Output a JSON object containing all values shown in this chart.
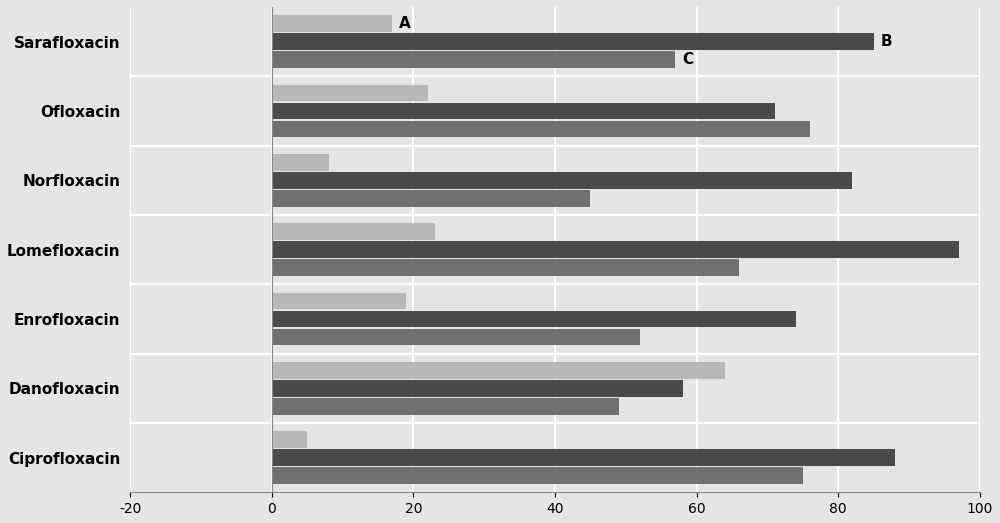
{
  "categories": [
    "Sarafloxacin",
    "Ofloxacin",
    "Norfloxacin",
    "Lomefloxacin",
    "Enrofloxacin",
    "Danofloxacin",
    "Ciprofloxacin"
  ],
  "series_A": [
    17,
    22,
    8,
    23,
    19,
    64,
    5
  ],
  "series_B": [
    85,
    71,
    82,
    97,
    74,
    58,
    88
  ],
  "series_C": [
    57,
    76,
    45,
    66,
    52,
    49,
    75
  ],
  "color_A": "#b8b8b8",
  "color_B": "#4a4a4a",
  "color_C": "#707070",
  "xlim": [
    -20,
    100
  ],
  "xticks": [
    -20,
    0,
    20,
    40,
    60,
    80,
    100
  ],
  "background_color": "#e5e5e5",
  "grid_color": "#ffffff",
  "label_A": "A",
  "label_B": "B",
  "label_C": "C",
  "bar_height": 0.24,
  "bar_gap": 0.02
}
